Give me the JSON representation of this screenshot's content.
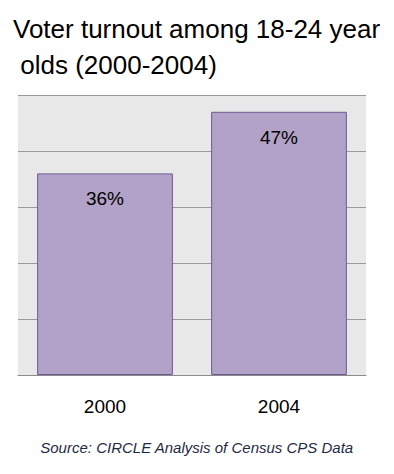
{
  "chart_data": {
    "type": "bar",
    "title": "Voter turnout among 18-24 year olds (2000-2004)",
    "categories": [
      "2000",
      "2004"
    ],
    "values": [
      36,
      47
    ],
    "value_labels": [
      "36%",
      "47%"
    ],
    "color": "#b3a2c7",
    "ylim": [
      0,
      50
    ],
    "yticks": [
      0,
      10,
      20,
      30,
      40,
      50
    ],
    "grid": true,
    "data_labels": true,
    "tick_labels": "x",
    "annotations": [
      "Source: CIRCLE Analysis of Census CPS Data"
    ]
  }
}
